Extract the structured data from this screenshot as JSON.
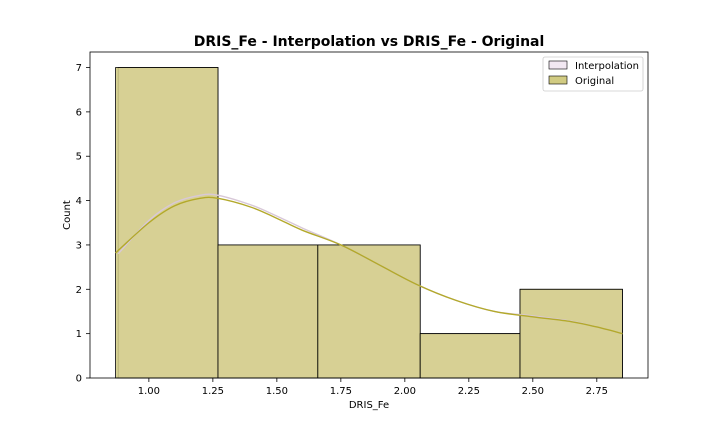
{
  "chart_data": {
    "type": "histogram",
    "title": "DRIS_Fe - Interpolation vs DRIS_Fe - Original",
    "xlabel": "DRIS_Fe",
    "ylabel": "Count",
    "xlim": [
      0.77,
      2.95
    ],
    "ylim": [
      0,
      7.35
    ],
    "xticks": [
      1.0,
      1.25,
      1.5,
      1.75,
      2.0,
      2.25,
      2.5,
      2.75
    ],
    "xtick_labels": [
      "1.00",
      "1.25",
      "1.50",
      "1.75",
      "2.00",
      "2.25",
      "2.50",
      "2.75"
    ],
    "yticks": [
      0,
      1,
      2,
      3,
      4,
      5,
      6,
      7
    ],
    "ytick_labels": [
      "0",
      "1",
      "2",
      "3",
      "4",
      "5",
      "6",
      "7"
    ],
    "grid": false,
    "legend_position": "top-right",
    "series": [
      {
        "name": "Interpolation",
        "color": "#f2e8f2",
        "line_color": "#d8c8d8",
        "bins": [
          {
            "x0": 0.88,
            "x1": 1.27,
            "count": 7
          },
          {
            "x0": 1.27,
            "x1": 1.66,
            "count": 3
          },
          {
            "x0": 1.66,
            "x1": 2.06,
            "count": 3
          },
          {
            "x0": 2.06,
            "x1": 2.45,
            "count": 1
          },
          {
            "x0": 2.45,
            "x1": 2.85,
            "count": 2
          }
        ],
        "kde": {
          "x": [
            0.88,
            1.0,
            1.1,
            1.2,
            1.27,
            1.4,
            1.5,
            1.6,
            1.75,
            1.9,
            2.05,
            2.2,
            2.35,
            2.5,
            2.65,
            2.75,
            2.85
          ],
          "y": [
            2.8,
            3.55,
            3.95,
            4.12,
            4.12,
            3.9,
            3.65,
            3.38,
            3.0,
            2.55,
            2.1,
            1.75,
            1.5,
            1.4,
            1.28,
            1.15,
            1.0
          ]
        }
      },
      {
        "name": "Original",
        "color": "#d1cb82",
        "line_color": "#b3a92b",
        "bins": [
          {
            "x0": 0.87,
            "x1": 1.27,
            "count": 7
          },
          {
            "x0": 1.27,
            "x1": 1.66,
            "count": 3
          },
          {
            "x0": 1.66,
            "x1": 2.06,
            "count": 3
          },
          {
            "x0": 2.06,
            "x1": 2.45,
            "count": 1
          },
          {
            "x0": 2.45,
            "x1": 2.85,
            "count": 2
          }
        ],
        "kde": {
          "x": [
            0.87,
            1.0,
            1.1,
            1.2,
            1.27,
            1.4,
            1.5,
            1.6,
            1.75,
            1.9,
            2.05,
            2.2,
            2.35,
            2.5,
            2.65,
            2.75,
            2.85
          ],
          "y": [
            2.82,
            3.5,
            3.88,
            4.05,
            4.05,
            3.85,
            3.6,
            3.33,
            3.0,
            2.55,
            2.1,
            1.75,
            1.5,
            1.38,
            1.27,
            1.15,
            1.0
          ]
        }
      }
    ]
  }
}
